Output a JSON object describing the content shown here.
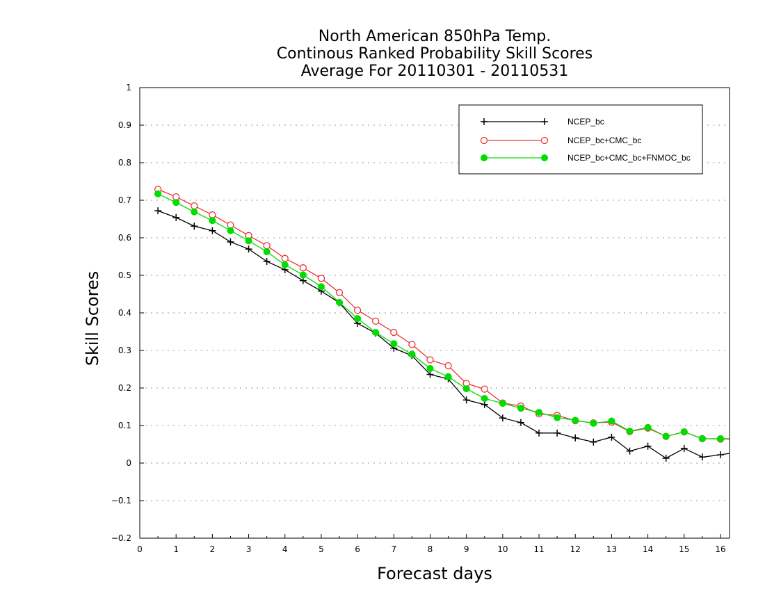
{
  "chart_data": {
    "type": "line",
    "title": [
      "North American 850hPa Temp.",
      "Continous Ranked Probability Skill Scores",
      "Average For 20110301 - 20110531"
    ],
    "xlabel": "Forecast days",
    "ylabel": "Skill Scores",
    "xlim": [
      0,
      16.25
    ],
    "ylim": [
      -0.2,
      1
    ],
    "xticks": [
      0,
      1,
      2,
      3,
      4,
      5,
      6,
      7,
      8,
      9,
      10,
      11,
      12,
      13,
      14,
      15,
      16
    ],
    "yticks": [
      -0.2,
      -0.1,
      0,
      0.1,
      0.2,
      0.3,
      0.4,
      0.5,
      0.6,
      0.7,
      0.8,
      0.9,
      1
    ],
    "ytick_labels": [
      "−0.2",
      "−0.1",
      "0",
      "0.1",
      "0.2",
      "0.3",
      "0.4",
      "0.5",
      "0.6",
      "0.7",
      "0.8",
      "0.9",
      "1"
    ],
    "grid": "horizontal-dotted",
    "legend_position": "top-right",
    "x": [
      0.5,
      1,
      1.5,
      2,
      2.5,
      3,
      3.5,
      4,
      4.5,
      5,
      5.5,
      6,
      6.5,
      7,
      7.5,
      8,
      8.5,
      9,
      9.5,
      10,
      10.5,
      11,
      11.5,
      12,
      12.5,
      13,
      13.5,
      14,
      14.5,
      15,
      15.5,
      16,
      16.25
    ],
    "series": [
      {
        "name": "NCEP_bc",
        "color": "#000000",
        "marker": "plus",
        "values": [
          0.672,
          0.654,
          0.631,
          0.619,
          0.589,
          0.57,
          0.537,
          0.515,
          0.486,
          0.458,
          0.427,
          0.372,
          0.346,
          0.306,
          0.286,
          0.236,
          0.224,
          0.168,
          0.156,
          0.12,
          0.108,
          0.08,
          0.08,
          0.067,
          0.056,
          0.069,
          0.032,
          0.045,
          0.013,
          0.039,
          0.016,
          0.022,
          0.026
        ]
      },
      {
        "name": "NCEP_bc+CMC_bc",
        "color": "#ee3333",
        "marker": "open-circle",
        "values": [
          0.729,
          0.709,
          0.685,
          0.661,
          0.634,
          0.606,
          0.579,
          0.545,
          0.52,
          0.492,
          0.454,
          0.407,
          0.378,
          0.348,
          0.316,
          0.275,
          0.259,
          0.212,
          0.197,
          0.16,
          0.152,
          0.131,
          0.127,
          0.113,
          0.107,
          0.109,
          0.084,
          0.093,
          0.071,
          0.083,
          0.065,
          0.064,
          0.064
        ]
      },
      {
        "name": "NCEP_bc+CMC_bc+FNMOC_bc",
        "color": "#00dd00",
        "marker": "filled-circle",
        "values": [
          0.717,
          0.694,
          0.669,
          0.646,
          0.619,
          0.592,
          0.563,
          0.528,
          0.501,
          0.47,
          0.428,
          0.385,
          0.348,
          0.318,
          0.29,
          0.252,
          0.23,
          0.198,
          0.172,
          0.159,
          0.146,
          0.135,
          0.121,
          0.114,
          0.106,
          0.112,
          0.085,
          0.095,
          0.071,
          0.083,
          0.065,
          0.065,
          0.065
        ]
      }
    ]
  }
}
